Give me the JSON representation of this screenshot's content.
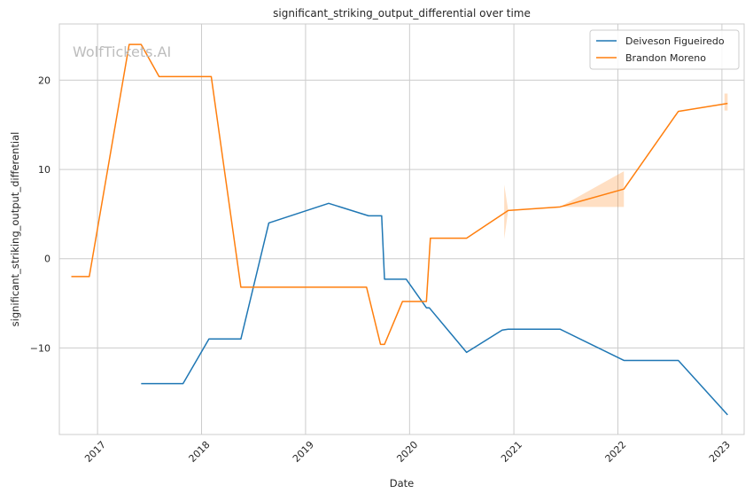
{
  "chart_data": {
    "type": "line",
    "title": "significant_striking_output_differential over time",
    "xlabel": "Date",
    "ylabel": "significant_striking_output_differential",
    "watermark": "WolfTickets.AI",
    "x_ticks": [
      "2017",
      "2018",
      "2019",
      "2020",
      "2021",
      "2022",
      "2023"
    ],
    "y_ticks": [
      -10,
      0,
      10,
      20
    ],
    "xlim": [
      "2016-08-20",
      "2023-03-20"
    ],
    "ylim": [
      -19.7,
      26.3
    ],
    "grid": true,
    "legend_position": "top-right",
    "series": [
      {
        "name": "Deiveson Figueiredo",
        "color": "#1f77b4",
        "points": [
          [
            "2017-06-03",
            -14.0
          ],
          [
            "2017-10-28",
            -14.0
          ],
          [
            "2018-01-27",
            -9.0
          ],
          [
            "2018-05-19",
            -9.0
          ],
          [
            "2018-08-25",
            4.0
          ],
          [
            "2019-03-23",
            6.2
          ],
          [
            "2019-08-10",
            4.8
          ],
          [
            "2019-09-25",
            4.8
          ],
          [
            "2019-10-05",
            -2.3
          ],
          [
            "2019-12-20",
            -2.3
          ],
          [
            "2020-02-29",
            -5.5
          ],
          [
            "2020-03-10",
            -5.5
          ],
          [
            "2020-07-19",
            -10.5
          ],
          [
            "2020-11-21",
            -8.0
          ],
          [
            "2020-12-12",
            -7.9
          ],
          [
            "2021-06-12",
            -7.9
          ],
          [
            "2022-01-22",
            -11.4
          ],
          [
            "2022-08-01",
            -11.4
          ],
          [
            "2023-01-21",
            -17.5
          ]
        ]
      },
      {
        "name": "Brandon Moreno",
        "color": "#ff7f0e",
        "points": [
          [
            "2016-10-01",
            -2.0
          ],
          [
            "2016-12-03",
            -2.0
          ],
          [
            "2017-04-22",
            24.0
          ],
          [
            "2017-06-03",
            24.0
          ],
          [
            "2017-08-05",
            20.4
          ],
          [
            "2018-02-04",
            20.4
          ],
          [
            "2018-05-19",
            -3.2
          ],
          [
            "2019-08-03",
            -3.2
          ],
          [
            "2019-09-21",
            -9.6
          ],
          [
            "2019-10-05",
            -9.6
          ],
          [
            "2019-12-07",
            -4.8
          ],
          [
            "2020-02-29",
            -4.8
          ],
          [
            "2020-03-14",
            2.3
          ],
          [
            "2020-07-19",
            2.3
          ],
          [
            "2020-12-12",
            5.4
          ],
          [
            "2021-06-12",
            5.8
          ],
          [
            "2022-01-22",
            7.8
          ],
          [
            "2022-08-01",
            16.5
          ],
          [
            "2023-01-21",
            17.4
          ]
        ],
        "confidence_bands": [
          {
            "x": [
              "2020-11-28",
              "2020-12-12"
            ],
            "upper": [
              8.3,
              5.4
            ],
            "lower": [
              2.2,
              5.4
            ]
          },
          {
            "x": [
              "2021-06-12",
              "2022-01-22"
            ],
            "upper": [
              5.8,
              9.8
            ],
            "lower": [
              5.8,
              5.8
            ]
          },
          {
            "x": [
              "2023-01-10",
              "2023-01-21"
            ],
            "upper": [
              18.5,
              18.5
            ],
            "lower": [
              16.6,
              16.6
            ]
          }
        ]
      }
    ]
  }
}
